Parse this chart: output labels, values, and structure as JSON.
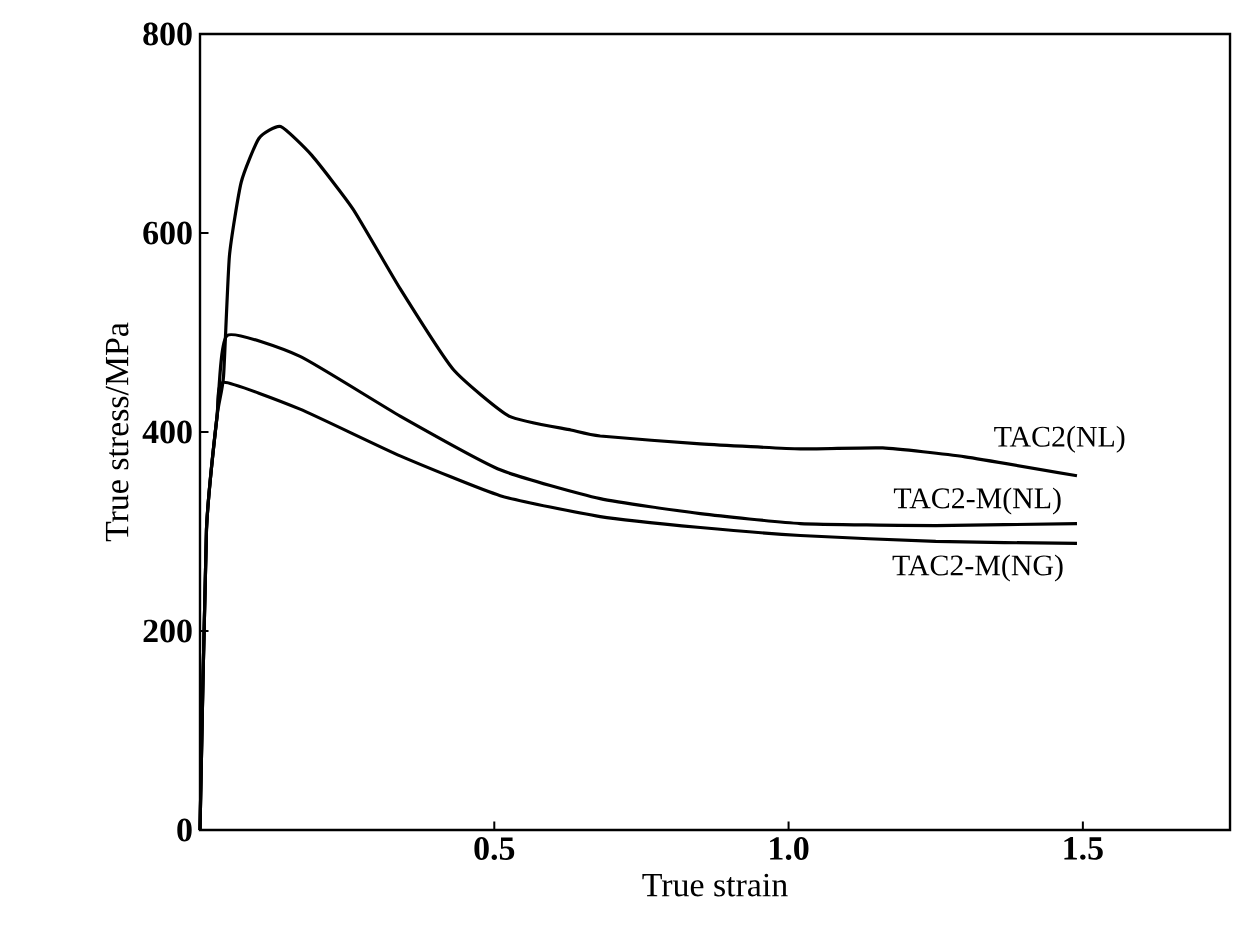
{
  "chart_data": {
    "type": "line",
    "xlabel": "True strain",
    "ylabel": "True stress/MPa",
    "xlim": [
      0,
      1.75
    ],
    "ylim": [
      0,
      800
    ],
    "xticks": [
      {
        "value": 0,
        "label": null
      },
      {
        "value": 0.5,
        "label": "0.5"
      },
      {
        "value": 1,
        "label": "1.0"
      },
      {
        "value": 1.5,
        "label": "1.5"
      }
    ],
    "yticks": [
      0,
      200,
      400,
      600,
      800
    ],
    "grid": false,
    "legend": false,
    "marker": "none",
    "line_style": "solid",
    "series": [
      {
        "name": "TAC2(NL)",
        "color": "#000000",
        "x": [
          0,
          0.011,
          0.029,
          0.04,
          0.05,
          0.07,
          0.1,
          0.137,
          0.19,
          0.26,
          0.34,
          0.43,
          0.525,
          0.63,
          0.68,
          0.85,
          1.02,
          1.16,
          1.3,
          1.49
        ],
        "values": [
          0,
          302,
          416,
          456,
          577,
          651,
          695,
          707,
          678,
          624,
          544,
          463,
          416,
          402,
          396,
          388,
          383,
          384,
          375,
          356
        ]
      },
      {
        "name": "TAC2-M(NL)",
        "color": "#000000",
        "x": [
          0,
          0.011,
          0.029,
          0.046,
          0.17,
          0.34,
          0.51,
          0.68,
          0.85,
          1.02,
          1.25,
          1.49
        ],
        "values": [
          0,
          302,
          416,
          497,
          476,
          416,
          362,
          333,
          318,
          308,
          306,
          308
        ]
      },
      {
        "name": "TAC2-M(NG)",
        "color": "#000000",
        "x": [
          0,
          0.011,
          0.029,
          0.04,
          0.17,
          0.34,
          0.51,
          0.68,
          0.85,
          1.02,
          1.25,
          1.49
        ],
        "values": [
          0,
          302,
          416,
          450,
          423,
          376,
          336,
          315,
          304,
          296,
          290,
          288
        ]
      }
    ]
  }
}
